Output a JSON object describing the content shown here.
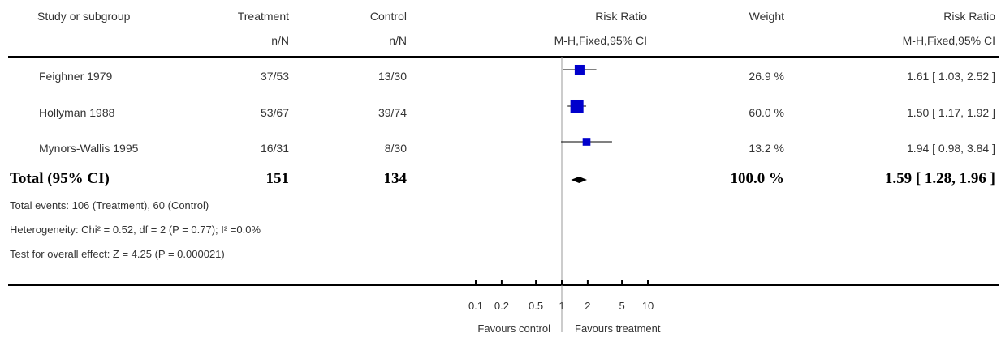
{
  "header": {
    "study": "Study or subgroup",
    "treatment": "Treatment",
    "treatment_sub": "n/N",
    "control": "Control",
    "control_sub": "n/N",
    "rr_plot": "Risk Ratio",
    "rr_plot_sub": "M-H,Fixed,95% CI",
    "weight": "Weight",
    "rr": "Risk Ratio",
    "rr_sub": "M-H,Fixed,95% CI"
  },
  "studies": [
    {
      "name": "Feighner 1979",
      "treatment": "37/53",
      "control": "13/30",
      "weight": "26.9 %",
      "ci_text": "1.61 [ 1.03, 2.52 ]"
    },
    {
      "name": "Hollyman 1988",
      "treatment": "53/67",
      "control": "39/74",
      "weight": "60.0 %",
      "ci_text": "1.50 [ 1.17, 1.92 ]"
    },
    {
      "name": "Mynors-Wallis 1995",
      "treatment": "16/31",
      "control": "8/30",
      "weight": "13.2 %",
      "ci_text": "1.94 [ 0.98, 3.84 ]"
    }
  ],
  "total": {
    "name": "Total (95% CI)",
    "treatment": "151",
    "control": "134",
    "weight": "100.0 %",
    "ci_text": "1.59 [ 1.28, 1.96 ]"
  },
  "notes": {
    "events": "Total events: 106 (Treatment), 60 (Control)",
    "heterogeneity": "Heterogeneity: Chi² = 0.52, df = 2 (P = 0.77); I² =0.0%",
    "overall": "Test for overall effect: Z = 4.25 (P = 0.000021)"
  },
  "axis": {
    "favours_left": "Favours control",
    "favours_right": "Favours treatment"
  },
  "colors": {
    "square": "#0000cc",
    "line": "#000000",
    "axis": "#999999"
  },
  "chart_data": {
    "type": "scatter",
    "scale": "log",
    "xlim": [
      0.1,
      10
    ],
    "ticks": [
      {
        "value": 0.1,
        "label": "0.1"
      },
      {
        "value": 0.2,
        "label": "0.2"
      },
      {
        "value": 0.5,
        "label": "0.5"
      },
      {
        "value": 1,
        "label": "1"
      },
      {
        "value": 2,
        "label": "2"
      },
      {
        "value": 5,
        "label": "5"
      },
      {
        "value": 10,
        "label": "10"
      }
    ],
    "points": [
      {
        "name": "Feighner 1979",
        "estimate": 1.61,
        "lower": 1.03,
        "upper": 2.52,
        "weight": 26.9
      },
      {
        "name": "Hollyman 1988",
        "estimate": 1.5,
        "lower": 1.17,
        "upper": 1.92,
        "weight": 60.0
      },
      {
        "name": "Mynors-Wallis 1995",
        "estimate": 1.94,
        "lower": 0.98,
        "upper": 3.84,
        "weight": 13.2
      }
    ],
    "total": {
      "estimate": 1.59,
      "lower": 1.28,
      "upper": 1.96
    }
  }
}
